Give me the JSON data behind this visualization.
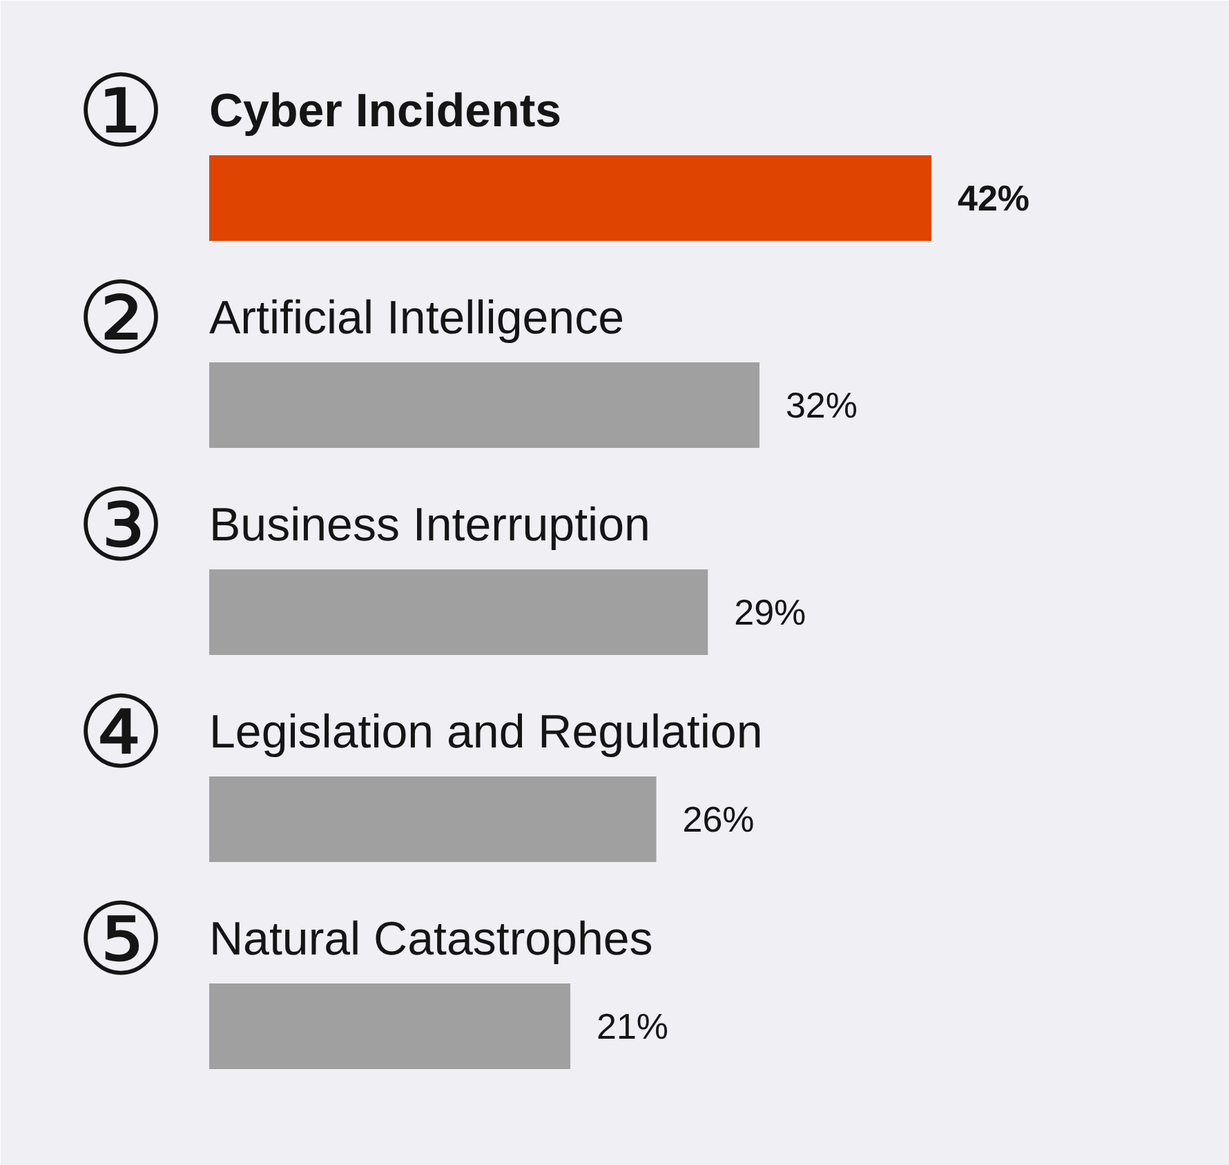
{
  "chart_data": {
    "type": "bar",
    "orientation": "horizontal",
    "categories": [
      "Cyber Incidents",
      "Artificial Intelligence",
      "Business Interruption",
      "Legislation and Regulation",
      "Natural Catastrophes"
    ],
    "values": [
      42,
      32,
      29,
      26,
      21
    ],
    "colors": [
      "#df4400",
      "#a0a0a0",
      "#a0a0a0",
      "#a0a0a0",
      "#a0a0a0"
    ],
    "value_labels": [
      "42%",
      "32%",
      "29%",
      "26%",
      "21%"
    ],
    "annotations": [
      "①",
      "②",
      "③",
      "④",
      "⑤"
    ]
  }
}
